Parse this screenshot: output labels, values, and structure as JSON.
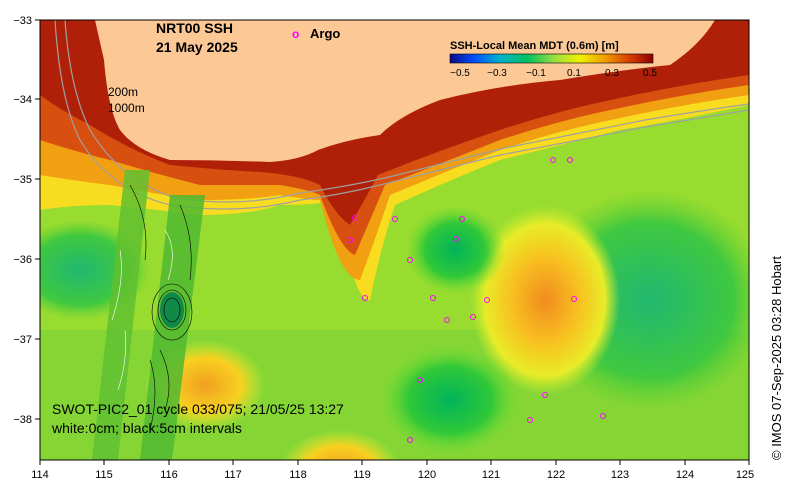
{
  "title": {
    "product": "NRT00 SSH",
    "date": "21 May 2025"
  },
  "legend": {
    "argo_marker": "o",
    "argo_label": "Argo",
    "argo_color": "#ff00ff",
    "colorbar_title": "SSH-Local Mean MDT (0.6m) [m]",
    "colorbar_ticks": [
      "−0.5",
      "−0.3",
      "−0.1",
      "0.1",
      "0.3",
      "0.5"
    ],
    "colorbar_colors": [
      "#0a0a8c",
      "#0050ff",
      "#00b4c8",
      "#00c060",
      "#a0e040",
      "#f0f000",
      "#f0a000",
      "#d84000",
      "#900000"
    ]
  },
  "isobaths": {
    "shallow": "200m",
    "deep": "1000m"
  },
  "swot": {
    "pass": "SWOT-PIC2_01 cycle 033/075; 21/05/25 13:27",
    "contours": "white:0cm; black:5cm intervals"
  },
  "axes": {
    "x_ticks": [
      "114",
      "115",
      "116",
      "117",
      "118",
      "119",
      "120",
      "121",
      "122",
      "123",
      "124",
      "125"
    ],
    "y_ticks": [
      "−33",
      "−34",
      "−35",
      "−36",
      "−37",
      "−38"
    ],
    "lon_range": [
      114,
      125
    ],
    "lat_range": [
      -33,
      -38.5
    ]
  },
  "credit": "© IMOS 07-Sep-2025 03:28 Hobart",
  "colors": {
    "land": "#fcc896",
    "isobath": "#a0a0a0"
  }
}
